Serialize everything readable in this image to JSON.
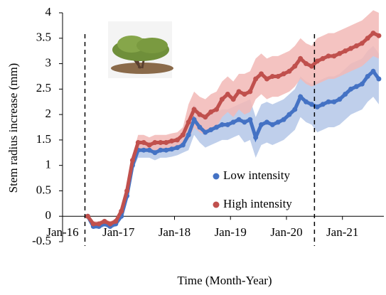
{
  "chart_data": {
    "type": "line",
    "xlabel": "Time (Month-Year)",
    "ylabel": "Stem radius increase (mm)",
    "xlim": [
      2016,
      2021.74
    ],
    "ylim": [
      -0.5,
      4
    ],
    "xticks": [
      {
        "value": 2016,
        "label": "Jan-16"
      },
      {
        "value": 2017,
        "label": "Jan-17"
      },
      {
        "value": 2018,
        "label": "Jan-18"
      },
      {
        "value": 2019,
        "label": "Jan-19"
      },
      {
        "value": 2020,
        "label": "Jan-20"
      },
      {
        "value": 2021,
        "label": "Jan-21"
      }
    ],
    "yticks": [
      -0.5,
      0,
      0.5,
      1,
      1.5,
      2,
      2.5,
      3,
      3.5,
      4
    ],
    "vlines": [
      2016.4,
      2020.5
    ],
    "legend_position": "lower right",
    "x": [
      2016.45,
      2016.55,
      2016.65,
      2016.75,
      2016.85,
      2016.95,
      2017.05,
      2017.15,
      2017.25,
      2017.35,
      2017.45,
      2017.55,
      2017.65,
      2017.75,
      2017.85,
      2017.95,
      2018.05,
      2018.15,
      2018.25,
      2018.35,
      2018.45,
      2018.55,
      2018.65,
      2018.75,
      2018.85,
      2018.95,
      2019.05,
      2019.15,
      2019.25,
      2019.35,
      2019.45,
      2019.55,
      2019.65,
      2019.75,
      2019.85,
      2019.95,
      2020.05,
      2020.15,
      2020.25,
      2020.35,
      2020.45,
      2020.55,
      2020.65,
      2020.75,
      2020.85,
      2020.95,
      2021.05,
      2021.15,
      2021.25,
      2021.35,
      2021.45,
      2021.55,
      2021.65
    ],
    "series": [
      {
        "name": "Low intensity",
        "color": "#4472c4",
        "band_color": "#b4c7e7",
        "values": [
          0,
          -0.2,
          -0.2,
          -0.15,
          -0.2,
          -0.15,
          0,
          0.4,
          1,
          1.3,
          1.3,
          1.3,
          1.25,
          1.3,
          1.3,
          1.32,
          1.35,
          1.4,
          1.6,
          1.9,
          1.75,
          1.65,
          1.7,
          1.75,
          1.8,
          1.8,
          1.85,
          1.9,
          1.85,
          1.9,
          1.55,
          1.8,
          1.85,
          1.8,
          1.85,
          1.9,
          2,
          2.1,
          2.35,
          2.25,
          2.2,
          2.15,
          2.2,
          2.25,
          2.25,
          2.3,
          2.4,
          2.5,
          2.55,
          2.6,
          2.75,
          2.85,
          2.7
        ],
        "errors": [
          0.05,
          0.05,
          0.05,
          0.05,
          0.05,
          0.05,
          0.05,
          0.1,
          0.1,
          0.15,
          0.15,
          0.15,
          0.15,
          0.15,
          0.15,
          0.15,
          0.15,
          0.15,
          0.3,
          0.3,
          0.3,
          0.3,
          0.3,
          0.3,
          0.3,
          0.3,
          0.3,
          0.3,
          0.4,
          0.4,
          0.4,
          0.4,
          0.4,
          0.4,
          0.4,
          0.4,
          0.4,
          0.4,
          0.4,
          0.4,
          0.4,
          0.5,
          0.5,
          0.5,
          0.5,
          0.5,
          0.5,
          0.5,
          0.5,
          0.5,
          0.5,
          0.5,
          0.5
        ]
      },
      {
        "name": "High intensity",
        "color": "#c0504d",
        "band_color": "#f2b8b6",
        "values": [
          0,
          -0.15,
          -0.15,
          -0.1,
          -0.15,
          -0.1,
          0.1,
          0.5,
          1.1,
          1.45,
          1.45,
          1.4,
          1.45,
          1.45,
          1.45,
          1.48,
          1.5,
          1.6,
          1.85,
          2.1,
          2,
          1.95,
          2.05,
          2.1,
          2.3,
          2.4,
          2.3,
          2.45,
          2.4,
          2.45,
          2.7,
          2.8,
          2.7,
          2.75,
          2.75,
          2.8,
          2.85,
          2.95,
          3.1,
          3,
          2.95,
          3.05,
          3.1,
          3.15,
          3.15,
          3.2,
          3.25,
          3.3,
          3.35,
          3.4,
          3.5,
          3.6,
          3.55
        ],
        "errors": [
          0.05,
          0.05,
          0.05,
          0.05,
          0.05,
          0.05,
          0.05,
          0.1,
          0.1,
          0.15,
          0.15,
          0.15,
          0.15,
          0.15,
          0.15,
          0.15,
          0.15,
          0.15,
          0.35,
          0.35,
          0.35,
          0.35,
          0.35,
          0.35,
          0.35,
          0.35,
          0.35,
          0.35,
          0.4,
          0.4,
          0.4,
          0.4,
          0.4,
          0.4,
          0.4,
          0.4,
          0.4,
          0.4,
          0.4,
          0.4,
          0.4,
          0.45,
          0.45,
          0.45,
          0.45,
          0.45,
          0.45,
          0.45,
          0.45,
          0.45,
          0.45,
          0.45,
          0.45
        ]
      }
    ]
  }
}
